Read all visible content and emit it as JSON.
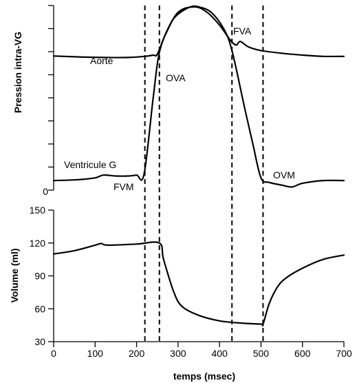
{
  "chart_data": [
    {
      "type": "line",
      "ylabel": "Pression intra-VG",
      "y_tick_labels": [
        "0"
      ],
      "y_tick_count": 9,
      "annotations": [
        "Aorte",
        "OVA",
        "FVA",
        "Ventricule G",
        "FVM",
        "OVM"
      ],
      "series": [
        {
          "name": "Aorte",
          "x": [
            0,
            60,
            120,
            180,
            220,
            240,
            250,
            270,
            300,
            340,
            370,
            400,
            425,
            440,
            450,
            470,
            500,
            550,
            600,
            650,
            700
          ],
          "y": [
            0.73,
            0.725,
            0.722,
            0.722,
            0.728,
            0.735,
            0.74,
            0.85,
            0.97,
            1.0,
            0.97,
            0.9,
            0.82,
            0.79,
            0.81,
            0.78,
            0.76,
            0.745,
            0.735,
            0.728,
            0.728
          ]
        },
        {
          "name": "Ventricule G",
          "x": [
            0,
            60,
            100,
            120,
            150,
            180,
            200,
            218,
            240,
            255,
            280,
            300,
            330,
            350,
            380,
            410,
            430,
            460,
            480,
            500,
            520,
            550,
            575,
            600,
            650,
            700
          ],
          "y": [
            0.045,
            0.05,
            0.06,
            0.075,
            0.07,
            0.07,
            0.075,
            0.08,
            0.5,
            0.75,
            0.9,
            0.96,
            1.0,
            1.0,
            0.97,
            0.88,
            0.76,
            0.45,
            0.25,
            0.06,
            0.035,
            0.02,
            0.01,
            0.03,
            0.045,
            0.045
          ]
        }
      ],
      "vertical_markers_x": [
        220,
        255,
        430,
        505
      ]
    },
    {
      "type": "line",
      "xlabel": "temps (msec)",
      "ylabel": "Volume (ml)",
      "x_tick_labels": [
        "0",
        "100",
        "200",
        "300",
        "400",
        "500",
        "600",
        "700"
      ],
      "y_tick_labels": [
        "30",
        "60",
        "90",
        "120",
        "150"
      ],
      "xlim": [
        0,
        700
      ],
      "ylim": [
        30,
        150
      ],
      "series": [
        {
          "name": "Volume",
          "x": [
            0,
            50,
            100,
            115,
            130,
            200,
            255,
            265,
            290,
            310,
            350,
            400,
            450,
            500,
            505,
            520,
            540,
            560,
            600,
            650,
            700
          ],
          "y": [
            110,
            113,
            118,
            119.5,
            118,
            119,
            120,
            105,
            75,
            62,
            54,
            49,
            47,
            46,
            46,
            65,
            80,
            88,
            97,
            105,
            109
          ]
        }
      ],
      "vertical_markers_x": [
        220,
        255,
        430,
        505
      ]
    }
  ]
}
